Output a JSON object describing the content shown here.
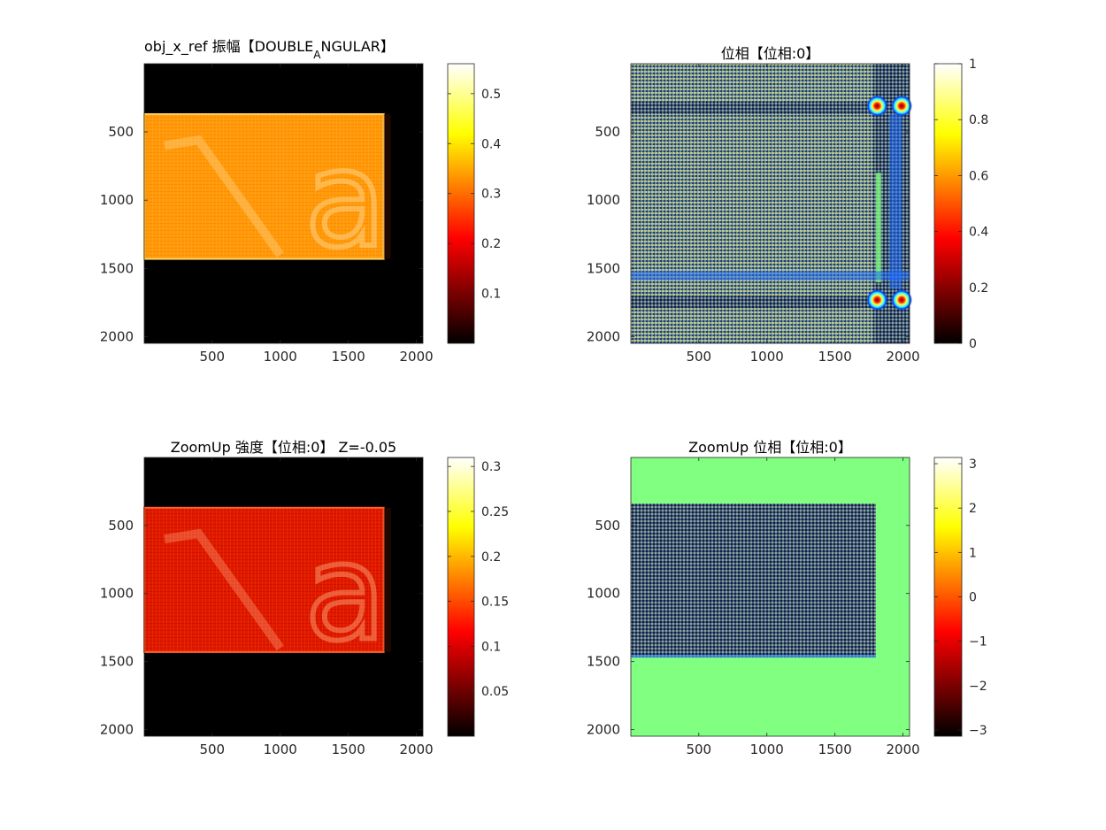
{
  "figure": {
    "background": "#ffffff",
    "axis_color": "#262626"
  },
  "chart_data": [
    {
      "type": "heatmap",
      "id": "p1",
      "title": "obj_x_ref  振幅【DOUBLE",
      "title_subscript": "A",
      "title_rest": "NGULAR】",
      "xlim": [
        1,
        2048
      ],
      "ylim": [
        1,
        2048
      ],
      "xticks": [
        500,
        1000,
        1500,
        2000
      ],
      "yticks": [
        500,
        1000,
        1500,
        2000
      ],
      "ydir": "reverse",
      "colormap": "hot",
      "clim": [
        0,
        0.56
      ],
      "colorbar_ticks": [
        0.1,
        0.2,
        0.3,
        0.4,
        0.5
      ],
      "colorbar_labels": [
        "0.1",
        "0.2",
        "0.3",
        "0.4",
        "0.5"
      ],
      "background_value": 0.0,
      "regions": [
        {
          "shape": "rect",
          "x": [
            1,
            1760
          ],
          "y": [
            370,
            1430
          ],
          "value": 0.33,
          "pattern": "fringe"
        }
      ],
      "text_overlay": "a"
    },
    {
      "type": "heatmap",
      "id": "p2",
      "title": "位相【位相:0】",
      "xlim": [
        1,
        2048
      ],
      "ylim": [
        1,
        2048
      ],
      "xticks": [
        500,
        1000,
        1500,
        2000
      ],
      "yticks": [
        500,
        1000,
        1500,
        2000
      ],
      "ydir": "reverse",
      "colormap": "jet-over-hot",
      "clim": [
        0,
        1
      ],
      "colorbar_colormap": "hot",
      "colorbar_ticks": [
        0,
        0.2,
        0.4,
        0.6,
        0.8,
        1
      ],
      "colorbar_labels": [
        "0",
        "0.2",
        "0.4",
        "0.6",
        "0.8",
        "1"
      ],
      "background_value": "checkerboard",
      "features": [
        {
          "shape": "ring",
          "x": 1810,
          "y": 310
        },
        {
          "shape": "ring",
          "x": 1990,
          "y": 310
        },
        {
          "shape": "ring",
          "x": 1810,
          "y": 1730
        },
        {
          "shape": "ring",
          "x": 1990,
          "y": 1730
        }
      ]
    },
    {
      "type": "heatmap",
      "id": "p3",
      "title": "ZoomUp 強度【位相:0】 Z=-0.05",
      "xlim": [
        1,
        2048
      ],
      "ylim": [
        1,
        2048
      ],
      "xticks": [
        500,
        1000,
        1500,
        2000
      ],
      "yticks": [
        500,
        1000,
        1500,
        2000
      ],
      "ydir": "reverse",
      "colormap": "hot",
      "clim": [
        0,
        0.31
      ],
      "colorbar_ticks": [
        0.05,
        0.1,
        0.15,
        0.2,
        0.25,
        0.3
      ],
      "colorbar_labels": [
        "0.05",
        "0.1",
        "0.15",
        "0.2",
        "0.25",
        "0.3"
      ],
      "background_value": 0.0,
      "regions": [
        {
          "shape": "rect",
          "x": [
            1,
            1760
          ],
          "y": [
            370,
            1430
          ],
          "value": 0.12,
          "pattern": "fringe"
        }
      ],
      "text_overlay": "a"
    },
    {
      "type": "heatmap",
      "id": "p4",
      "title": "ZoomUp 位相【位相:0】",
      "xlim": [
        1,
        2048
      ],
      "ylim": [
        1,
        2048
      ],
      "xticks": [
        500,
        1000,
        1500,
        2000
      ],
      "yticks": [
        500,
        1000,
        1500,
        2000
      ],
      "ydir": "reverse",
      "colormap": "jet",
      "clim": [
        -3.14,
        3.14
      ],
      "colorbar_colormap": "hot",
      "colorbar_ticks": [
        -3,
        -2,
        -1,
        0,
        1,
        2,
        3
      ],
      "colorbar_labels": [
        "−3",
        "−2",
        "−1",
        "0",
        "1",
        "2",
        "3"
      ],
      "background_value": 0.0,
      "background_color": "#80ff80",
      "regions": [
        {
          "shape": "rect",
          "x": [
            1,
            1800
          ],
          "y": [
            340,
            1470
          ],
          "pattern": "checkerboard"
        }
      ]
    }
  ]
}
